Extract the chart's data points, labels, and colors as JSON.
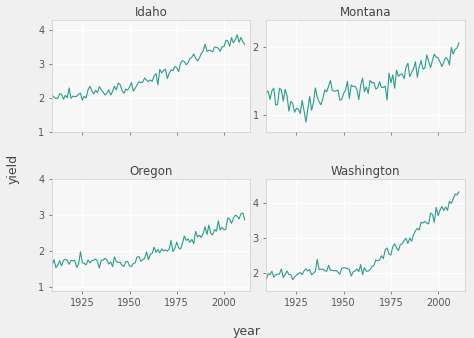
{
  "states": [
    "Idaho",
    "Montana",
    "Oregon",
    "Washington"
  ],
  "year_start": 1909,
  "year_end": 2012,
  "line_color": "#2a9d8f",
  "line_width": 0.8,
  "bg_color": "#f0f0f0",
  "panel_bg": "#f7f7f7",
  "grid_color": "#ffffff",
  "title_fontsize": 8.5,
  "axis_label_fontsize": 9,
  "tick_fontsize": 7,
  "ylabel": "yield",
  "xlabel": "year",
  "xticks": [
    1925,
    1950,
    1975,
    2000
  ],
  "idaho_yticks": [
    1,
    2,
    3,
    4
  ],
  "montana_yticks": [
    1,
    2
  ],
  "oregon_yticks": [
    1,
    2,
    3,
    4
  ],
  "washington_yticks": [
    2,
    3,
    4
  ],
  "idaho_ylim": [
    1.4,
    4.3
  ],
  "montana_ylim": [
    0.75,
    2.4
  ],
  "oregon_ylim": [
    0.9,
    3.8
  ],
  "washington_ylim": [
    1.5,
    4.7
  ]
}
